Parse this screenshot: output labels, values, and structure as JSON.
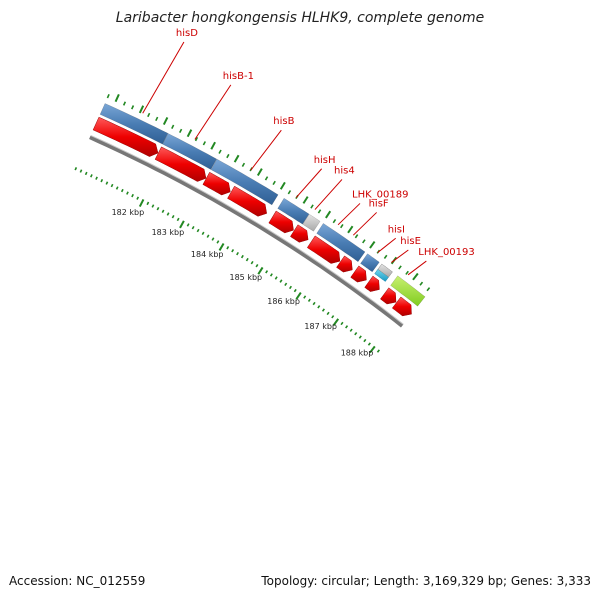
{
  "title": "Laribacter hongkongensis HLHK9, complete genome",
  "footer": {
    "accession": "Accession: NC_012559",
    "topology": "Topology: circular; Length: 3,169,329 bp; Genes: 3,333"
  },
  "colors": {
    "cds_arrow": "#ee0000",
    "gene_blue": "#4a7db4",
    "gene_gray": "#bdbdbd",
    "gene_cyan": "#20b0d8",
    "gene_green": "#99e030",
    "ticks": "#228822",
    "label_red": "#cc0000",
    "backbone": "#777777"
  },
  "gene_labels": [
    "hisD",
    "hisB-1",
    "hisB",
    "hisH",
    "his4",
    "LHK_00189",
    "hisF",
    "hisI",
    "hisE",
    "LHK_00193"
  ],
  "kbp_labels": [
    "182 kbp",
    "183 kbp",
    "184 kbp",
    "185 kbp",
    "186 kbp",
    "187 kbp",
    "188 kbp"
  ]
}
